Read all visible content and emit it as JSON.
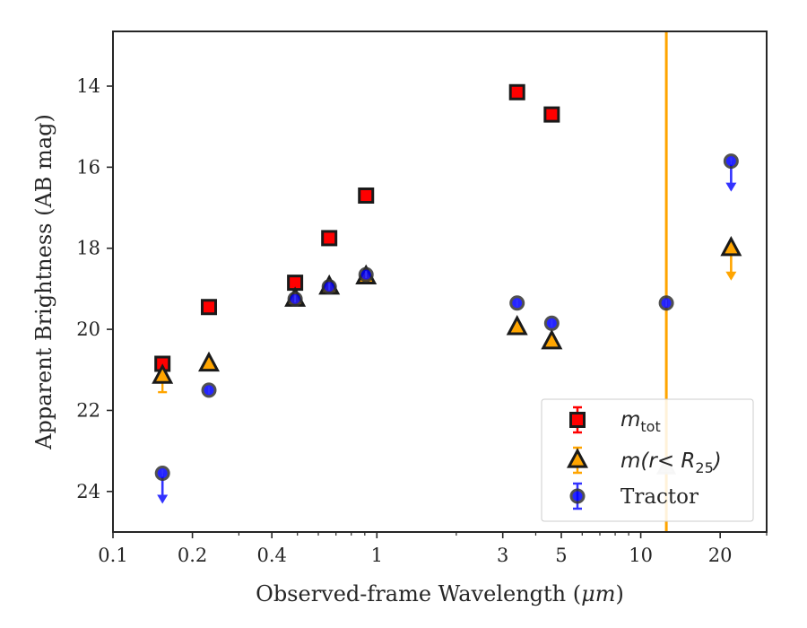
{
  "chart_data": {
    "type": "scatter",
    "xlabel": "Observed-frame Wavelength (",
    "xlabel_unit": "μm",
    "xlabel_close": ")",
    "ylabel": "Apparent Brightness (AB mag)",
    "xscale": "log",
    "xlim": [
      0.1,
      30
    ],
    "ylim": [
      25.0,
      12.65
    ],
    "y_inverted": true,
    "grid": false,
    "legend_position": "lower-right",
    "x_ticks": [
      0.1,
      0.2,
      0.4,
      1,
      3,
      5,
      10,
      20
    ],
    "x_tick_labels": [
      "0.1",
      "0.2",
      "0.4",
      "1",
      "3",
      "5",
      "10",
      "20"
    ],
    "y_ticks": [
      14,
      16,
      18,
      20,
      22,
      24
    ],
    "y_tick_labels": [
      "14",
      "16",
      "18",
      "20",
      "22",
      "24"
    ],
    "vline": {
      "x": 12.5,
      "color": "#ffa500"
    },
    "series": [
      {
        "name": "m_tot",
        "legend_main": "m",
        "legend_sub": "tot",
        "marker": "square",
        "color": "#ff0000",
        "errcolor": "#ff0000",
        "points": [
          {
            "x": 0.154,
            "y": 20.85
          },
          {
            "x": 0.231,
            "y": 19.45
          },
          {
            "x": 0.49,
            "y": 18.85
          },
          {
            "x": 0.66,
            "y": 17.75
          },
          {
            "x": 0.91,
            "y": 16.7
          },
          {
            "x": 3.4,
            "y": 14.15
          },
          {
            "x": 4.6,
            "y": 14.7
          }
        ]
      },
      {
        "name": "m(r < R25)",
        "legend_main": "m(r< R",
        "legend_sub": "25",
        "legend_close": ")",
        "marker": "triangle",
        "color": "#ffa500",
        "errcolor": "#ffa500",
        "points": [
          {
            "x": 0.154,
            "y": 21.15,
            "yerr_low": 0.4
          },
          {
            "x": 0.231,
            "y": 20.85
          },
          {
            "x": 0.49,
            "y": 19.25
          },
          {
            "x": 0.66,
            "y": 18.95
          },
          {
            "x": 0.91,
            "y": 18.7
          },
          {
            "x": 3.4,
            "y": 19.95
          },
          {
            "x": 4.6,
            "y": 20.3
          },
          {
            "x": 12.5,
            "y": 23.4,
            "ghost": true
          },
          {
            "x": 22.0,
            "y": 18.0,
            "upper_limit": true
          }
        ]
      },
      {
        "name": "Tractor",
        "marker": "circle",
        "color": "#0000ff",
        "errcolor": "#3333ff",
        "points": [
          {
            "x": 0.154,
            "y": 23.55,
            "upper_limit": true
          },
          {
            "x": 0.231,
            "y": 21.5
          },
          {
            "x": 0.49,
            "y": 19.25
          },
          {
            "x": 0.66,
            "y": 18.95
          },
          {
            "x": 0.91,
            "y": 18.65
          },
          {
            "x": 3.4,
            "y": 19.35
          },
          {
            "x": 4.6,
            "y": 19.85
          },
          {
            "x": 12.5,
            "y": 19.35
          },
          {
            "x": 22.0,
            "y": 15.85,
            "upper_limit": true
          }
        ]
      }
    ],
    "legend": {
      "entries": [
        "m_tot",
        "m(r < R25)",
        "Tractor"
      ],
      "tractor_label": "Tractor"
    }
  }
}
